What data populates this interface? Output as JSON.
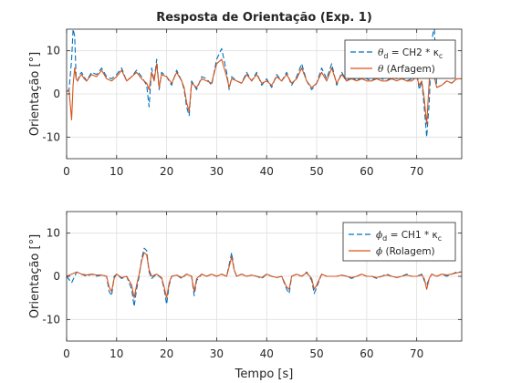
{
  "chart_data": [
    {
      "type": "line",
      "title": "Resposta de Orientação (Exp. 1)",
      "xlabel": "",
      "ylabel": "Orientação [°]",
      "xlim": [
        0,
        79
      ],
      "ylim": [
        -15,
        15
      ],
      "xticks": [
        0,
        10,
        20,
        30,
        40,
        50,
        60,
        70
      ],
      "yticks": [
        -10,
        0,
        10
      ],
      "grid": true,
      "legend_position": "top-right",
      "legend": [
        {
          "greek": "θ",
          "sub": "d",
          "text": " = CH2 * κ",
          "sub2": "c"
        },
        {
          "greek": "θ",
          "sub": "",
          "text": " (Arfagem)",
          "sub2": ""
        }
      ],
      "series": [
        {
          "name": "θd = CH2 * κc",
          "color": "#0072BD",
          "style": "dashed",
          "x": [
            0,
            0.5,
            1.0,
            1.3,
            1.6,
            1.9,
            2.2,
            2.6,
            3.0,
            3.5,
            4,
            5,
            6,
            7,
            8,
            9,
            10,
            11,
            12,
            13,
            14,
            15,
            16,
            16.5,
            17,
            17.5,
            18,
            18.5,
            19,
            20,
            21,
            22,
            23,
            23.5,
            24,
            24.5,
            25,
            26,
            27,
            28,
            29,
            30,
            31,
            32,
            32.5,
            33,
            34,
            35,
            36,
            37,
            38,
            39,
            40,
            41,
            42,
            43,
            44,
            45,
            46,
            47,
            48,
            49,
            50,
            51,
            52,
            53,
            54,
            55,
            56,
            57,
            58,
            59,
            60,
            61,
            62,
            63,
            64,
            65,
            66,
            67,
            68,
            69,
            70,
            70.5,
            71,
            71.5,
            72,
            72.5,
            73,
            73.5,
            74,
            75,
            76,
            77,
            78,
            79
          ],
          "values": [
            0.5,
            1.0,
            8.0,
            15.0,
            13.5,
            4.0,
            3.0,
            4.5,
            5.0,
            4.0,
            3.0,
            5.0,
            4.5,
            6.0,
            4.0,
            3.5,
            4.5,
            6.0,
            3.0,
            4.0,
            5.5,
            4.0,
            2.0,
            -3.0,
            6.0,
            3.0,
            8.0,
            1.0,
            5.0,
            4.0,
            2.0,
            5.5,
            3.0,
            1.0,
            -3.0,
            -5.0,
            3.0,
            1.0,
            4.0,
            3.5,
            2.0,
            8.0,
            10.5,
            5.0,
            1.0,
            4.0,
            3.0,
            2.5,
            5.0,
            3.0,
            5.0,
            2.0,
            3.5,
            1.5,
            4.5,
            3.0,
            5.0,
            2.0,
            4.0,
            7.0,
            3.0,
            1.0,
            2.5,
            6.0,
            3.5,
            7.0,
            2.0,
            5.0,
            3.0,
            4.0,
            3.0,
            4.0,
            3.5,
            3.0,
            4.0,
            3.5,
            3.0,
            4.0,
            3.5,
            4.0,
            3.0,
            3.5,
            5.0,
            1.0,
            3.0,
            -3.0,
            -10.0,
            -2.0,
            12.0,
            16.0,
            1.5,
            2.0,
            3.0,
            2.5,
            3.5,
            3.5
          ]
        },
        {
          "name": "θ (Arfagem)",
          "color": "#D95319",
          "style": "solid",
          "x": [
            0,
            0.5,
            1.0,
            1.3,
            1.6,
            1.9,
            2.2,
            2.6,
            3.0,
            3.5,
            4,
            5,
            6,
            7,
            8,
            9,
            10,
            11,
            12,
            13,
            14,
            15,
            16,
            16.5,
            17,
            17.5,
            18,
            18.5,
            19,
            20,
            21,
            22,
            23,
            23.5,
            24,
            24.5,
            25,
            26,
            27,
            28,
            29,
            30,
            31,
            32,
            32.5,
            33,
            34,
            35,
            36,
            37,
            38,
            39,
            40,
            41,
            42,
            43,
            44,
            45,
            46,
            47,
            48,
            49,
            50,
            51,
            52,
            53,
            54,
            55,
            56,
            57,
            58,
            59,
            60,
            61,
            62,
            63,
            64,
            65,
            66,
            67,
            68,
            69,
            70,
            70.5,
            71,
            71.5,
            72,
            72.5,
            73,
            73.5,
            74,
            75,
            76,
            77,
            78,
            79
          ],
          "values": [
            0.5,
            0.8,
            -6.0,
            2.0,
            6.0,
            3.5,
            3.0,
            4.0,
            4.5,
            3.5,
            3.0,
            4.5,
            4.0,
            5.5,
            3.5,
            3.0,
            4.0,
            5.5,
            3.0,
            4.0,
            5.0,
            3.5,
            2.5,
            1.0,
            5.0,
            3.0,
            7.0,
            1.5,
            4.5,
            4.0,
            2.5,
            5.0,
            3.0,
            1.5,
            -2.0,
            -4.0,
            2.5,
            1.5,
            3.5,
            3.0,
            2.5,
            7.0,
            8.0,
            4.0,
            1.5,
            3.5,
            3.0,
            2.5,
            4.5,
            3.0,
            4.5,
            2.5,
            3.0,
            2.0,
            4.0,
            3.0,
            4.5,
            2.5,
            3.5,
            6.0,
            3.0,
            1.5,
            2.5,
            5.0,
            3.0,
            6.0,
            2.5,
            4.5,
            3.0,
            3.5,
            3.0,
            3.5,
            3.0,
            3.0,
            3.5,
            3.0,
            3.0,
            3.5,
            3.0,
            3.5,
            3.0,
            3.0,
            4.0,
            2.0,
            3.0,
            -1.0,
            -7.0,
            3.0,
            12.0,
            4.0,
            1.5,
            2.0,
            3.0,
            2.5,
            3.5,
            3.5
          ]
        }
      ]
    },
    {
      "type": "line",
      "title": "",
      "xlabel": "Tempo [s]",
      "ylabel": "Orientação [°]",
      "xlim": [
        0,
        79
      ],
      "ylim": [
        -15,
        15
      ],
      "xticks": [
        0,
        10,
        20,
        30,
        40,
        50,
        60,
        70
      ],
      "yticks": [
        -10,
        0,
        10
      ],
      "grid": true,
      "legend_position": "top-right",
      "legend": [
        {
          "greek": "ϕ",
          "sub": "d",
          "text": " = CH1 * κ",
          "sub2": "c"
        },
        {
          "greek": "ϕ",
          "sub": "",
          "text": " (Rolagem)",
          "sub2": ""
        }
      ],
      "series": [
        {
          "name": "ϕd = CH1 * κc",
          "color": "#0072BD",
          "style": "dashed",
          "x": [
            0,
            1,
            2,
            3,
            4,
            5,
            6,
            7,
            8,
            8.5,
            9,
            9.5,
            10,
            11,
            12,
            13,
            13.5,
            14,
            14.5,
            15,
            15.5,
            16,
            16.5,
            17,
            18,
            19,
            19.5,
            20,
            20.5,
            21,
            22,
            23,
            24,
            25,
            25.5,
            26,
            27,
            28,
            29,
            30,
            31,
            32,
            33,
            33.5,
            34,
            35,
            36,
            37,
            38,
            39,
            40,
            41,
            42,
            43,
            44,
            44.5,
            45,
            46,
            47,
            48,
            49,
            49.5,
            50,
            51,
            52,
            53,
            54,
            55,
            56,
            57,
            58,
            59,
            60,
            61,
            62,
            63,
            64,
            65,
            66,
            67,
            68,
            69,
            70,
            71,
            71.5,
            72,
            72.5,
            73,
            74,
            75,
            76,
            77,
            78,
            79
          ],
          "values": [
            0,
            -1.5,
            1.0,
            0.5,
            0,
            0.5,
            0,
            0.3,
            0,
            -3.5,
            -4.5,
            0,
            0.5,
            -0.5,
            0,
            -3.0,
            -7.0,
            -3.0,
            0,
            4.0,
            6.5,
            6.0,
            1.0,
            -0.5,
            0.5,
            -0.5,
            -3.0,
            -6.5,
            -2.0,
            0,
            0.3,
            -0.5,
            0.5,
            0,
            -4.5,
            -1.0,
            0.5,
            0,
            0.5,
            0,
            0.5,
            0,
            5.5,
            1.5,
            0,
            0.5,
            0,
            0.3,
            0,
            -0.5,
            0.5,
            0,
            -0.3,
            0,
            -3.0,
            -4.0,
            0,
            0.5,
            0,
            1.0,
            -1.0,
            -4.0,
            -2.5,
            0.5,
            0,
            0,
            0,
            0.3,
            0,
            -0.5,
            0,
            0.5,
            0,
            0,
            -0.5,
            0,
            0.5,
            0,
            -0.3,
            0,
            0.5,
            0,
            0,
            0.5,
            -1.0,
            -2.0,
            -0.5,
            0.5,
            0,
            0.5,
            0,
            0.5,
            1.0,
            1.0
          ]
        },
        {
          "name": "ϕ (Rolagem)",
          "color": "#D95319",
          "style": "solid",
          "x": [
            0,
            1,
            2,
            3,
            4,
            5,
            6,
            7,
            8,
            8.5,
            9,
            9.5,
            10,
            11,
            12,
            13,
            13.5,
            14,
            14.5,
            15,
            15.5,
            16,
            16.5,
            17,
            18,
            19,
            19.5,
            20,
            20.5,
            21,
            22,
            23,
            24,
            25,
            25.5,
            26,
            27,
            28,
            29,
            30,
            31,
            32,
            33,
            33.5,
            34,
            35,
            36,
            37,
            38,
            39,
            40,
            41,
            42,
            43,
            44,
            44.5,
            45,
            46,
            47,
            48,
            49,
            49.5,
            50,
            51,
            52,
            53,
            54,
            55,
            56,
            57,
            58,
            59,
            60,
            61,
            62,
            63,
            64,
            65,
            66,
            67,
            68,
            69,
            70,
            71,
            71.5,
            72,
            72.5,
            73,
            74,
            75,
            76,
            77,
            78,
            79
          ],
          "values": [
            0,
            0.5,
            1.0,
            0.5,
            0.3,
            0.5,
            0.3,
            0.3,
            0,
            -2.5,
            -3.5,
            -0.5,
            0.5,
            -0.3,
            0,
            -2.0,
            -5.0,
            -2.0,
            0.5,
            3.5,
            5.5,
            5.0,
            1.5,
            0,
            0.5,
            -0.3,
            -2.5,
            -5.0,
            -1.5,
            0,
            0.3,
            -0.3,
            0.5,
            0,
            -3.5,
            -0.5,
            0.5,
            0,
            0.5,
            0,
            0.5,
            0,
            4.5,
            1.5,
            0,
            0.5,
            0,
            0.3,
            0,
            -0.3,
            0.5,
            0,
            -0.3,
            0,
            -2.5,
            -3.0,
            0,
            0.5,
            0,
            0.8,
            -0.5,
            -3.0,
            -2.0,
            0.5,
            0,
            0,
            0,
            0.3,
            0,
            -0.3,
            0,
            0.5,
            0,
            0,
            -0.3,
            0,
            0.3,
            0,
            -0.3,
            0,
            0.3,
            0,
            0,
            0.3,
            -0.5,
            -3.0,
            -0.5,
            0.5,
            0,
            0.5,
            0.3,
            0.5,
            0.8,
            1.0
          ]
        }
      ]
    }
  ]
}
